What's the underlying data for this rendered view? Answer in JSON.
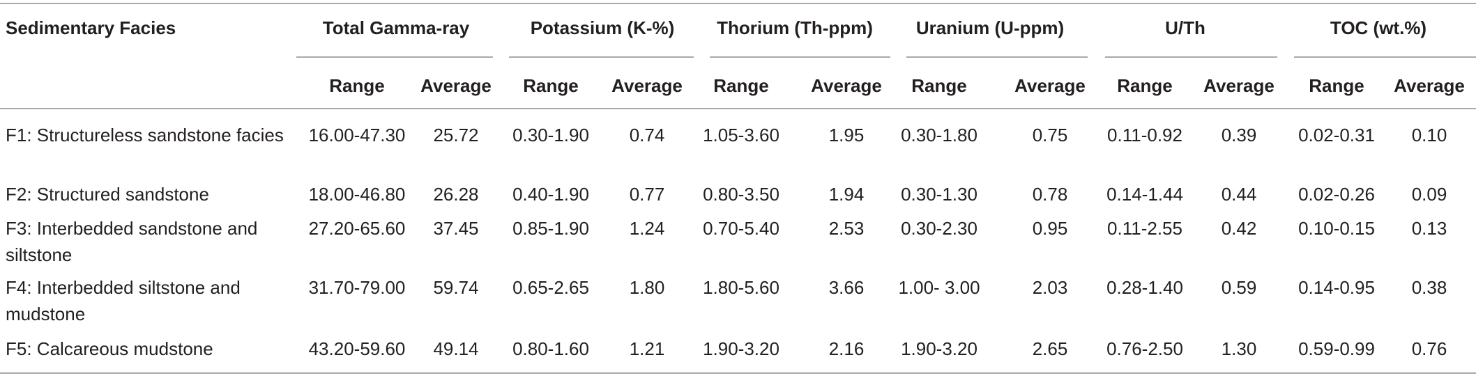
{
  "table": {
    "facies_header": "Sedimentary Facies",
    "groups": [
      "Total Gamma-ray",
      "Potassium (K-%)",
      "Thorium (Th-ppm)",
      "Uranium (U-ppm)",
      "U/Th",
      "TOC (wt.%)"
    ],
    "subheaders": [
      "Range",
      "Average"
    ],
    "rows": [
      {
        "facies": "F1: Structureless sandstone facies",
        "values": [
          "16.00-47.30",
          "25.72",
          "0.30-1.90",
          "0.74",
          "1.05-3.60",
          "1.95",
          "0.30-1.80",
          "0.75",
          "0.11-0.92",
          "0.39",
          "0.02-0.31",
          "0.10"
        ]
      },
      {
        "facies": "F2: Structured sandstone",
        "values": [
          "18.00-46.80",
          "26.28",
          "0.40-1.90",
          "0.77",
          "0.80-3.50",
          "1.94",
          "0.30-1.30",
          "0.78",
          "0.14-1.44",
          "0.44",
          "0.02-0.26",
          "0.09"
        ]
      },
      {
        "facies": "F3: Interbedded sandstone and siltstone",
        "values": [
          "27.20-65.60",
          "37.45",
          "0.85-1.90",
          "1.24",
          "0.70-5.40",
          "2.53",
          "0.30-2.30",
          "0.95",
          "0.11-2.55",
          "0.42",
          "0.10-0.15",
          "0.13"
        ]
      },
      {
        "facies": "F4: Interbedded siltstone and mudstone",
        "values": [
          "31.70-79.00",
          "59.74",
          "0.65-2.65",
          "1.80",
          "1.80-5.60",
          "3.66",
          "1.00- 3.00",
          "2.03",
          "0.28-1.40",
          "0.59",
          "0.14-0.95",
          "0.38"
        ]
      },
      {
        "facies": "F5: Calcareous mudstone",
        "values": [
          "43.20-59.60",
          "49.14",
          "0.80-1.60",
          "1.21",
          "1.90-3.20",
          "2.16",
          "1.90-3.20",
          "2.65",
          "0.76-2.50",
          "1.30",
          "0.59-0.99",
          "0.76"
        ]
      }
    ]
  }
}
